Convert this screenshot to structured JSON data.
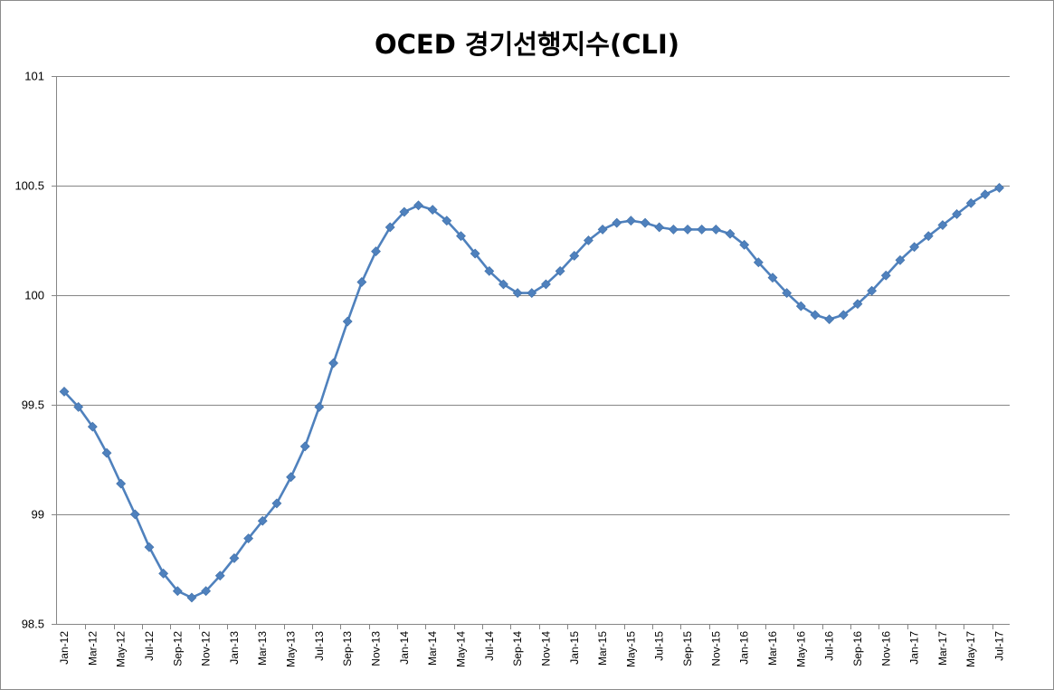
{
  "chart_data": {
    "type": "line",
    "title": "OCED 경기선행지수(CLI)",
    "xlabel": "",
    "ylabel": "",
    "ylim": [
      98.5,
      101
    ],
    "yticks": [
      "98.5",
      "99",
      "99.5",
      "100",
      "100.5",
      "101"
    ],
    "ytick_values": [
      98.5,
      99,
      99.5,
      100,
      100.5,
      101
    ],
    "grid": true,
    "legend": "none",
    "series_color": "#4f81bd",
    "marker": "diamond",
    "x": [
      "Jan-12",
      "Feb-12",
      "Mar-12",
      "Apr-12",
      "May-12",
      "Jun-12",
      "Jul-12",
      "Aug-12",
      "Sep-12",
      "Oct-12",
      "Nov-12",
      "Dec-12",
      "Jan-13",
      "Feb-13",
      "Mar-13",
      "Apr-13",
      "May-13",
      "Jun-13",
      "Jul-13",
      "Aug-13",
      "Sep-13",
      "Oct-13",
      "Nov-13",
      "Dec-13",
      "Jan-14",
      "Feb-14",
      "Mar-14",
      "Apr-14",
      "May-14",
      "Jun-14",
      "Jul-14",
      "Aug-14",
      "Sep-14",
      "Oct-14",
      "Nov-14",
      "Dec-14",
      "Jan-15",
      "Feb-15",
      "Mar-15",
      "Apr-15",
      "May-15",
      "Jun-15",
      "Jul-15",
      "Aug-15",
      "Sep-15",
      "Oct-15",
      "Nov-15",
      "Dec-15",
      "Jan-16",
      "Feb-16",
      "Mar-16",
      "Apr-16",
      "May-16",
      "Jun-16",
      "Jul-16",
      "Aug-16",
      "Sep-16",
      "Oct-16",
      "Nov-16",
      "Dec-16",
      "Jan-17",
      "Feb-17",
      "Mar-17",
      "Apr-17",
      "May-17",
      "Jun-17",
      "Jul-17"
    ],
    "xtick_labels": [
      "Jan-12",
      "Mar-12",
      "May-12",
      "Jul-12",
      "Sep-12",
      "Nov-12",
      "Jan-13",
      "Mar-13",
      "May-13",
      "Jul-13",
      "Sep-13",
      "Nov-13",
      "Jan-14",
      "Mar-14",
      "May-14",
      "Jul-14",
      "Sep-14",
      "Nov-14",
      "Jan-15",
      "Mar-15",
      "May-15",
      "Jul-15",
      "Sep-15",
      "Nov-15",
      "Jan-16",
      "Mar-16",
      "May-16",
      "Jul-16",
      "Sep-16",
      "Nov-16",
      "Jan-17",
      "Mar-17",
      "May-17",
      "Jul-17"
    ],
    "values": [
      99.56,
      99.49,
      99.4,
      99.28,
      99.14,
      99.0,
      98.85,
      98.73,
      98.65,
      98.62,
      98.65,
      98.72,
      98.8,
      98.89,
      98.97,
      99.05,
      99.17,
      99.31,
      99.49,
      99.69,
      99.88,
      100.06,
      100.2,
      100.31,
      100.38,
      100.41,
      100.39,
      100.34,
      100.27,
      100.19,
      100.11,
      100.05,
      100.01,
      100.01,
      100.05,
      100.11,
      100.18,
      100.25,
      100.3,
      100.33,
      100.34,
      100.33,
      100.31,
      100.3,
      100.3,
      100.3,
      100.3,
      100.28,
      100.23,
      100.15,
      100.08,
      100.01,
      99.95,
      99.91,
      99.89,
      99.91,
      99.96,
      100.02,
      100.09,
      100.16,
      100.22,
      100.27,
      100.32,
      100.37,
      100.42,
      100.46,
      100.49
    ]
  }
}
